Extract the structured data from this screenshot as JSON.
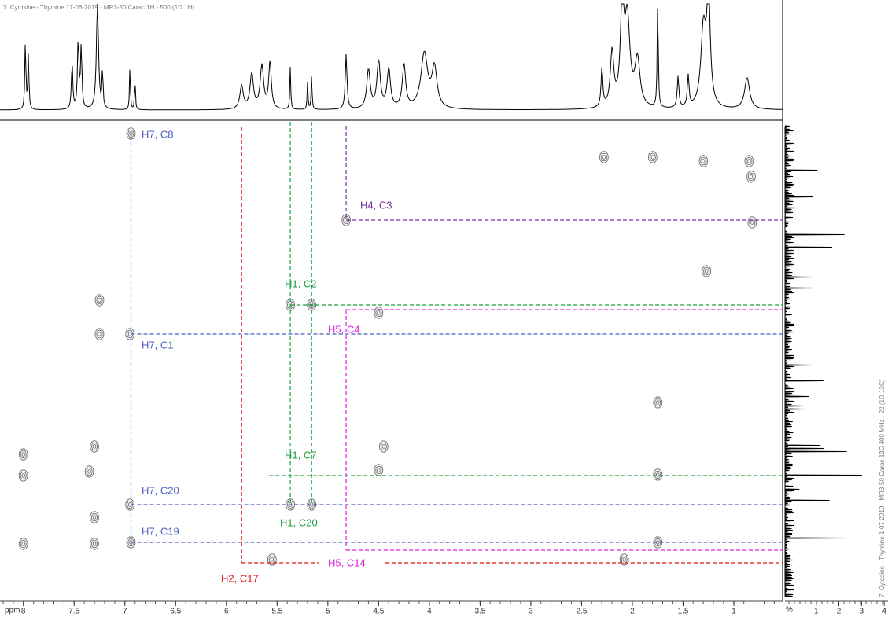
{
  "chart_data": {
    "type": "nmr-2d",
    "title": "7. Cytosine - Thymine 17-06-2019 - MR3-50 Carac 1H - 500 (1D 1H)",
    "side_title": "7. Cytosine - Thymine 1-07-2019 - MR3-50 Carac 13C 400 MHz - 22 (1D 13C)",
    "x_label": "ppm",
    "xlim": [
      8.23,
      0.52
    ],
    "xticks": [
      8,
      7.5,
      7,
      6.5,
      6,
      5.5,
      5,
      4.5,
      4,
      3.5,
      3,
      2.5,
      2,
      1.5,
      1
    ],
    "side_label": "%",
    "side_xlim": [
      -0.38,
      4.17
    ],
    "side_xticks": [
      1,
      2,
      3,
      4
    ],
    "annotations": [
      {
        "label": "H7, C8",
        "color": "#4a5fc1",
        "h": 6.94
      },
      {
        "label": "H4, C3",
        "color": "#7030a0",
        "h": 4.82
      },
      {
        "label": "H1, C2",
        "color": "#1e9e3e",
        "h": 5.37
      },
      {
        "label": "H5, C4",
        "color": "#e020e0",
        "h": 4.82
      },
      {
        "label": "H7, C1",
        "color": "#4a5fc1",
        "h": 6.94
      },
      {
        "label": "H1, C7",
        "color": "#1e9e3e",
        "h": 5.16
      },
      {
        "label": "H7, C20",
        "color": "#4a5fc1",
        "h": 6.94
      },
      {
        "label": "H1, C20",
        "color": "#1e9e3e",
        "h": 5.37
      },
      {
        "label": "H7, C19",
        "color": "#4a5fc1",
        "h": 6.94
      },
      {
        "label": "H5, C14",
        "color": "#e020e0",
        "h": 4.82
      },
      {
        "label": "H2, C17",
        "color": "#e01010",
        "h": 5.85
      }
    ]
  }
}
